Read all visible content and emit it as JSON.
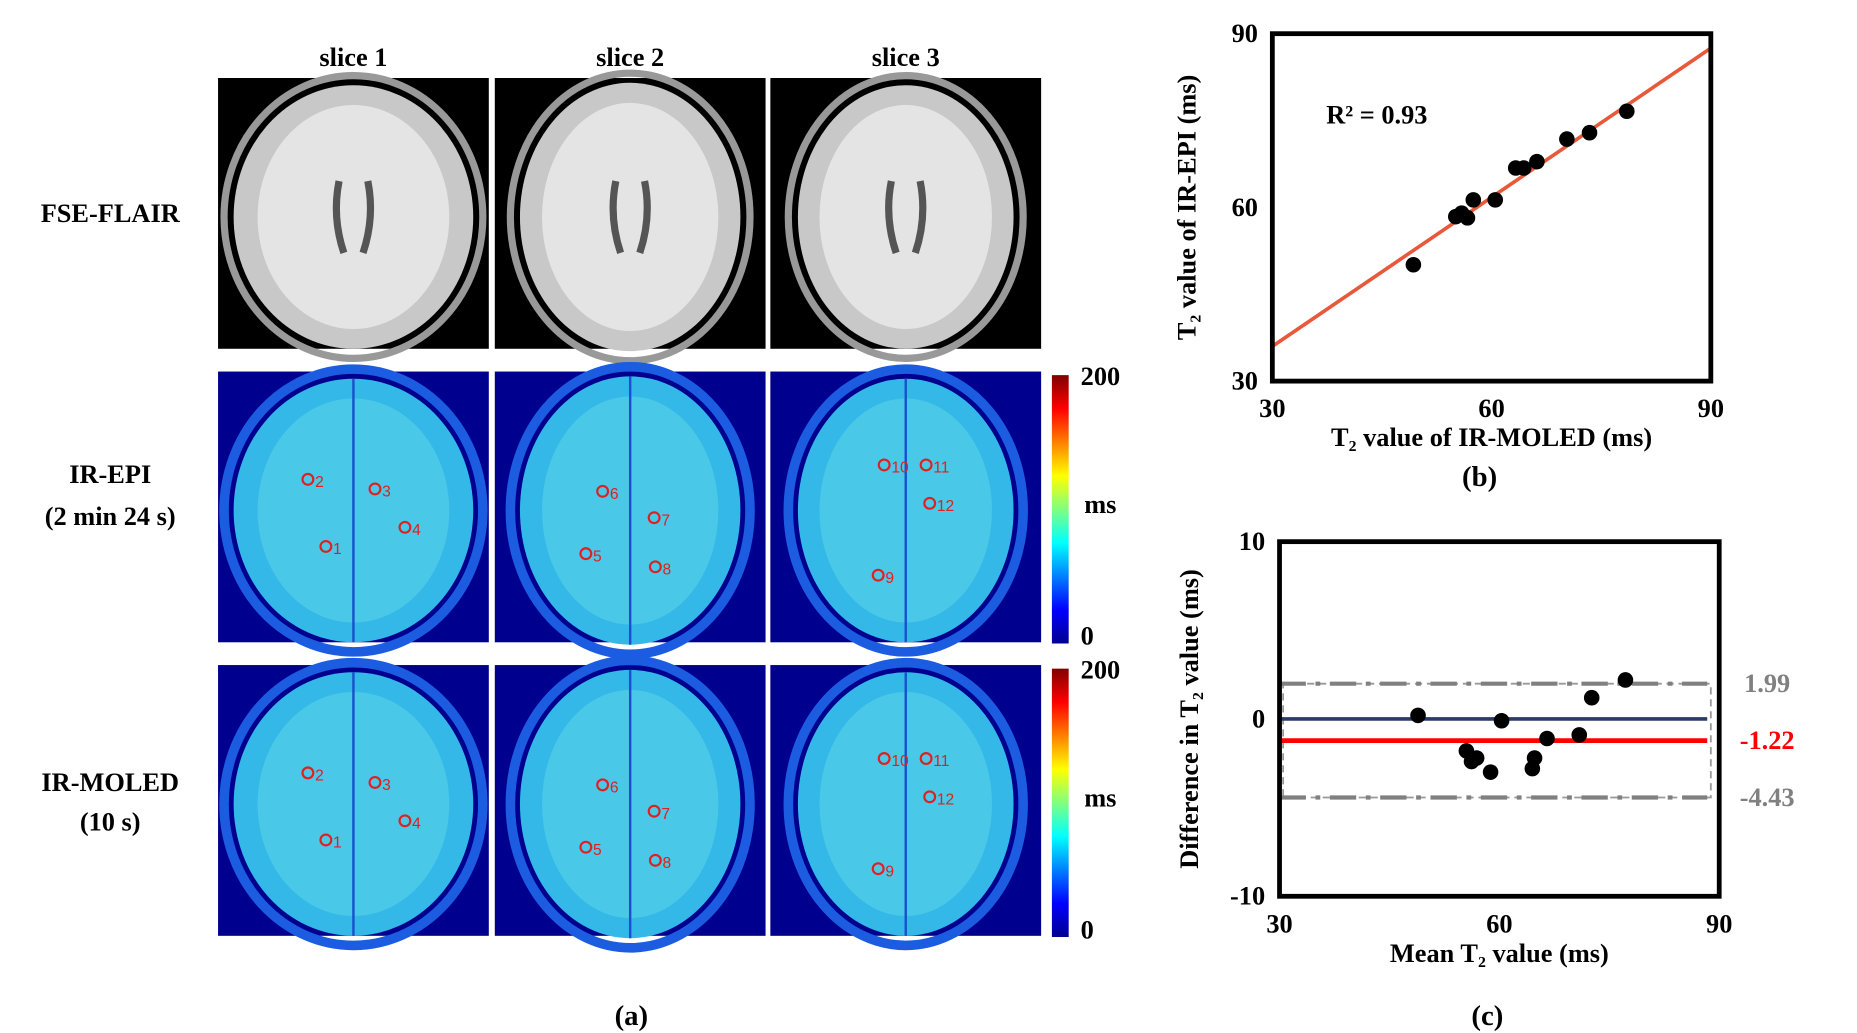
{
  "panel_a": {
    "columns": [
      "slice 1",
      "slice 2",
      "slice 3"
    ],
    "rows": [
      [
        "FSE-FLAIR"
      ],
      [
        "IR-EPI",
        "(2 min 24 s)"
      ],
      [
        "IR-MOLED",
        "(10 s)"
      ]
    ],
    "roi_labels": [
      [
        "1",
        "2",
        "3",
        "4"
      ],
      [
        "5",
        "6",
        "7",
        "8"
      ],
      [
        "9",
        "10",
        "11",
        "12"
      ]
    ],
    "colorbar": {
      "ylim": [
        0,
        200
      ],
      "yticks": [
        0,
        200
      ],
      "label": "ms"
    },
    "caption": "(a)"
  },
  "chart_data": [
    {
      "type": "scatter",
      "xlabel": "T₂ value of IR-MOLED (ms)",
      "ylabel": "T₂ value of IR-EPI (ms)",
      "annotation": "R² = 0.93",
      "caption": "(b)",
      "x": [
        49.3,
        55.1,
        55.9,
        56.7,
        57.5,
        60.5,
        63.3,
        64.4,
        66.2,
        70.3,
        73.4,
        78.5
      ],
      "y": [
        50.1,
        58.4,
        59.0,
        58.2,
        61.3,
        61.3,
        66.8,
        66.8,
        67.9,
        71.8,
        72.9,
        76.6
      ],
      "color": "#000000",
      "fit": {
        "x": [
          30,
          90
        ],
        "y": [
          36,
          87.5
        ],
        "color": "#e8583a"
      },
      "xlim": [
        30,
        90
      ],
      "ylim": [
        30,
        90
      ],
      "xticks": [
        30,
        60,
        90
      ],
      "yticks": [
        30,
        60,
        90
      ]
    },
    {
      "type": "scatter",
      "xlabel": "Mean T₂ value (ms)",
      "ylabel": "Difference in  T₂ value (ms)",
      "caption": "(c)",
      "x": [
        48.9,
        55.5,
        56.2,
        56.9,
        58.8,
        60.3,
        64.5,
        64.8,
        66.5,
        70.9,
        72.6,
        77.2
      ],
      "y": [
        0.2,
        -1.8,
        -2.4,
        -2.2,
        -3.0,
        -0.1,
        -2.8,
        -2.2,
        -1.1,
        -0.9,
        1.2,
        2.2
      ],
      "color": "#000000",
      "zero_line": {
        "value": 0,
        "color": "#2b3a67"
      },
      "limits": [
        {
          "value": 1.99,
          "color": "#808080",
          "style": "dashdot"
        },
        {
          "value": -1.22,
          "color": "#ff0000",
          "style": "solid"
        },
        {
          "value": -4.43,
          "color": "#808080",
          "style": "dashdot"
        }
      ],
      "xlim": [
        30,
        90
      ],
      "ylim": [
        -10,
        10
      ],
      "xticks": [
        30,
        60,
        90
      ],
      "yticks": [
        -10,
        0,
        10
      ]
    }
  ]
}
